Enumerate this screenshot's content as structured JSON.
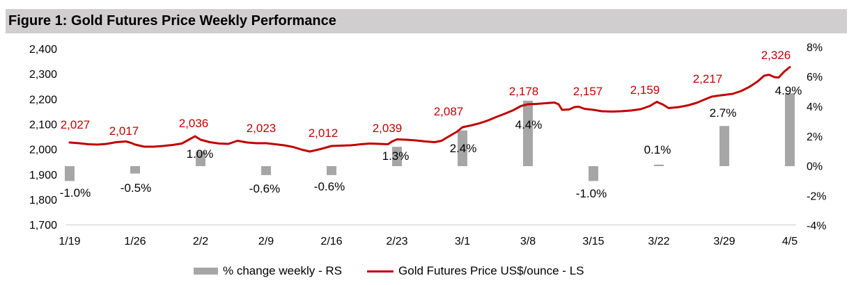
{
  "figure_title": "Figure 1: Gold Futures Price Weekly Performance",
  "chart_data": {
    "type": "combo",
    "title": "Figure 1: Gold Futures Price Weekly Performance",
    "categories": [
      "1/19",
      "1/26",
      "2/2",
      "2/9",
      "2/16",
      "2/23",
      "3/1",
      "3/8",
      "3/15",
      "3/22",
      "3/29",
      "4/5"
    ],
    "series": [
      {
        "name": "% change weekly - RS",
        "type": "bar",
        "axis": "right",
        "color": "#A6A6A6",
        "values": [
          -1.0,
          -0.5,
          1.0,
          -0.6,
          -0.6,
          1.3,
          2.4,
          4.4,
          -1.0,
          0.1,
          2.7,
          4.9
        ],
        "data_labels": [
          "-1.0%",
          "-0.5%",
          "1.0%",
          "-0.6%",
          "-0.6%",
          "1.3%",
          "2.4%",
          "4.4%",
          "-1.0%",
          "0.1%",
          "2.7%",
          "4.9%"
        ]
      },
      {
        "name": "Gold Futures Price US$/ounce - LS",
        "type": "line",
        "axis": "left",
        "color": "#C00000",
        "values": [
          2027,
          2017,
          2036,
          2023,
          2012,
          2039,
          2087,
          2178,
          2157,
          2159,
          2217,
          2326
        ],
        "data_labels": [
          "2,027",
          "2,017",
          "2,036",
          "2,023",
          "2,012",
          "2,039",
          "2,087",
          "2,178",
          "2,157",
          "2,159",
          "2,217",
          "2,326"
        ]
      }
    ],
    "left_axis": {
      "side": "left",
      "min": 1700,
      "max": 2400,
      "tick_labels": [
        "2,400",
        "2,300",
        "2,200",
        "2,100",
        "2,000",
        "1,900",
        "1,800",
        "1,700"
      ]
    },
    "right_axis": {
      "side": "right",
      "min": -4,
      "max": 8,
      "tick_labels": [
        "8%",
        "6%",
        "4%",
        "2%",
        "0%",
        "-2%",
        "-4%"
      ]
    },
    "grid": false,
    "legend_position": "bottom",
    "axis_line_color": "#D9D9D9",
    "text_color": "#000000"
  }
}
